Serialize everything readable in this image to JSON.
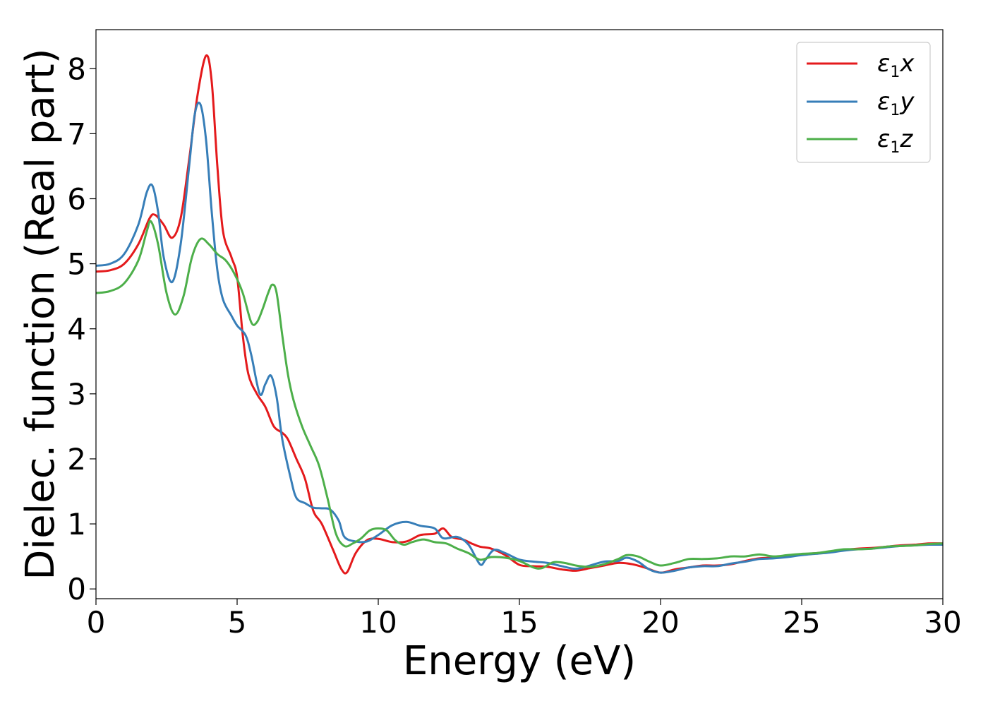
{
  "chart_data": {
    "type": "line",
    "title": "",
    "xlabel": "Energy (eV)",
    "ylabel": "Dielec. function (Real part)",
    "xlim": [
      0,
      30
    ],
    "ylim": [
      -0.15,
      8.6
    ],
    "xticks": [
      0,
      5,
      10,
      15,
      20,
      25,
      30
    ],
    "yticks": [
      0,
      1,
      2,
      3,
      4,
      5,
      6,
      7,
      8
    ],
    "grid": false,
    "legend_position": "top-right",
    "series": [
      {
        "name": "ε₁x",
        "legend_main": "ε",
        "legend_sub": "1",
        "legend_suffix": "x",
        "color": "#e41a1c",
        "points": [
          [
            0,
            4.88
          ],
          [
            0.5,
            4.9
          ],
          [
            1,
            5.0
          ],
          [
            1.5,
            5.3
          ],
          [
            1.9,
            5.7
          ],
          [
            2.1,
            5.75
          ],
          [
            2.4,
            5.6
          ],
          [
            2.7,
            5.4
          ],
          [
            3.0,
            5.7
          ],
          [
            3.3,
            6.6
          ],
          [
            3.6,
            7.6
          ],
          [
            3.9,
            8.2
          ],
          [
            4.1,
            7.8
          ],
          [
            4.3,
            6.5
          ],
          [
            4.5,
            5.5
          ],
          [
            4.8,
            5.1
          ],
          [
            5.0,
            4.8
          ],
          [
            5.2,
            3.9
          ],
          [
            5.4,
            3.3
          ],
          [
            5.7,
            3.0
          ],
          [
            6.0,
            2.8
          ],
          [
            6.3,
            2.5
          ],
          [
            6.6,
            2.4
          ],
          [
            6.8,
            2.3
          ],
          [
            7.1,
            2.0
          ],
          [
            7.4,
            1.7
          ],
          [
            7.7,
            1.2
          ],
          [
            8.0,
            1.0
          ],
          [
            8.4,
            0.6
          ],
          [
            8.7,
            0.3
          ],
          [
            8.9,
            0.26
          ],
          [
            9.2,
            0.55
          ],
          [
            9.6,
            0.75
          ],
          [
            10.0,
            0.77
          ],
          [
            10.5,
            0.72
          ],
          [
            11.0,
            0.73
          ],
          [
            11.5,
            0.83
          ],
          [
            12.0,
            0.85
          ],
          [
            12.3,
            0.93
          ],
          [
            12.6,
            0.8
          ],
          [
            13.0,
            0.76
          ],
          [
            13.3,
            0.7
          ],
          [
            13.6,
            0.65
          ],
          [
            14.0,
            0.62
          ],
          [
            14.5,
            0.52
          ],
          [
            15.0,
            0.37
          ],
          [
            15.5,
            0.35
          ],
          [
            16.0,
            0.34
          ],
          [
            16.5,
            0.3
          ],
          [
            17.0,
            0.28
          ],
          [
            17.5,
            0.32
          ],
          [
            18.0,
            0.36
          ],
          [
            18.5,
            0.4
          ],
          [
            19.0,
            0.38
          ],
          [
            19.5,
            0.32
          ],
          [
            20.0,
            0.25
          ],
          [
            20.5,
            0.3
          ],
          [
            21.0,
            0.33
          ],
          [
            21.5,
            0.36
          ],
          [
            22.0,
            0.36
          ],
          [
            22.5,
            0.38
          ],
          [
            23.0,
            0.43
          ],
          [
            23.5,
            0.47
          ],
          [
            24.0,
            0.48
          ],
          [
            24.5,
            0.5
          ],
          [
            25.0,
            0.53
          ],
          [
            25.5,
            0.55
          ],
          [
            26.0,
            0.57
          ],
          [
            26.5,
            0.6
          ],
          [
            27.0,
            0.62
          ],
          [
            27.5,
            0.63
          ],
          [
            28.0,
            0.65
          ],
          [
            28.5,
            0.67
          ],
          [
            29.0,
            0.68
          ],
          [
            29.5,
            0.7
          ],
          [
            30.0,
            0.7
          ]
        ]
      },
      {
        "name": "ε₁y",
        "legend_main": "ε",
        "legend_sub": "1",
        "legend_suffix": "y",
        "color": "#377eb8",
        "points": [
          [
            0,
            4.97
          ],
          [
            0.5,
            5.0
          ],
          [
            1,
            5.15
          ],
          [
            1.5,
            5.6
          ],
          [
            1.8,
            6.1
          ],
          [
            2.0,
            6.2
          ],
          [
            2.2,
            5.8
          ],
          [
            2.4,
            5.1
          ],
          [
            2.7,
            4.72
          ],
          [
            3.0,
            5.3
          ],
          [
            3.3,
            6.5
          ],
          [
            3.5,
            7.3
          ],
          [
            3.7,
            7.45
          ],
          [
            3.9,
            6.9
          ],
          [
            4.1,
            5.8
          ],
          [
            4.3,
            4.9
          ],
          [
            4.5,
            4.45
          ],
          [
            4.8,
            4.2
          ],
          [
            5.0,
            4.05
          ],
          [
            5.3,
            3.9
          ],
          [
            5.5,
            3.6
          ],
          [
            5.8,
            3.0
          ],
          [
            6.0,
            3.15
          ],
          [
            6.2,
            3.28
          ],
          [
            6.4,
            2.95
          ],
          [
            6.6,
            2.3
          ],
          [
            6.9,
            1.7
          ],
          [
            7.1,
            1.4
          ],
          [
            7.4,
            1.32
          ],
          [
            7.7,
            1.25
          ],
          [
            8.0,
            1.24
          ],
          [
            8.3,
            1.22
          ],
          [
            8.6,
            1.05
          ],
          [
            8.8,
            0.8
          ],
          [
            9.2,
            0.73
          ],
          [
            9.6,
            0.73
          ],
          [
            10.0,
            0.83
          ],
          [
            10.5,
            0.98
          ],
          [
            11.0,
            1.03
          ],
          [
            11.5,
            0.97
          ],
          [
            12.0,
            0.93
          ],
          [
            12.3,
            0.78
          ],
          [
            12.8,
            0.8
          ],
          [
            13.2,
            0.68
          ],
          [
            13.6,
            0.38
          ],
          [
            13.8,
            0.45
          ],
          [
            14.1,
            0.6
          ],
          [
            14.5,
            0.55
          ],
          [
            15.0,
            0.45
          ],
          [
            15.5,
            0.42
          ],
          [
            16.0,
            0.4
          ],
          [
            16.5,
            0.35
          ],
          [
            17.0,
            0.31
          ],
          [
            17.5,
            0.36
          ],
          [
            18.0,
            0.42
          ],
          [
            18.5,
            0.43
          ],
          [
            18.8,
            0.48
          ],
          [
            19.2,
            0.42
          ],
          [
            19.6,
            0.3
          ],
          [
            20.0,
            0.25
          ],
          [
            20.5,
            0.28
          ],
          [
            21.0,
            0.33
          ],
          [
            21.5,
            0.35
          ],
          [
            22.0,
            0.35
          ],
          [
            22.5,
            0.39
          ],
          [
            23.0,
            0.42
          ],
          [
            23.5,
            0.46
          ],
          [
            24.0,
            0.47
          ],
          [
            24.5,
            0.49
          ],
          [
            25.0,
            0.52
          ],
          [
            25.5,
            0.54
          ],
          [
            26.0,
            0.56
          ],
          [
            26.5,
            0.59
          ],
          [
            27.0,
            0.61
          ],
          [
            27.5,
            0.62
          ],
          [
            28.0,
            0.64
          ],
          [
            28.5,
            0.66
          ],
          [
            29.0,
            0.67
          ],
          [
            29.5,
            0.68
          ],
          [
            30.0,
            0.68
          ]
        ]
      },
      {
        "name": "ε₁z",
        "legend_main": "ε",
        "legend_sub": "1",
        "legend_suffix": "z",
        "color": "#4daf4a",
        "points": [
          [
            0,
            4.55
          ],
          [
            0.5,
            4.58
          ],
          [
            1,
            4.7
          ],
          [
            1.5,
            5.05
          ],
          [
            1.8,
            5.5
          ],
          [
            1.95,
            5.65
          ],
          [
            2.2,
            5.3
          ],
          [
            2.5,
            4.55
          ],
          [
            2.8,
            4.22
          ],
          [
            3.1,
            4.5
          ],
          [
            3.4,
            5.1
          ],
          [
            3.7,
            5.38
          ],
          [
            4.0,
            5.3
          ],
          [
            4.3,
            5.15
          ],
          [
            4.6,
            5.05
          ],
          [
            4.9,
            4.85
          ],
          [
            5.2,
            4.55
          ],
          [
            5.5,
            4.1
          ],
          [
            5.7,
            4.1
          ],
          [
            5.9,
            4.3
          ],
          [
            6.1,
            4.55
          ],
          [
            6.25,
            4.68
          ],
          [
            6.4,
            4.55
          ],
          [
            6.6,
            3.9
          ],
          [
            6.8,
            3.3
          ],
          [
            7.0,
            2.9
          ],
          [
            7.3,
            2.5
          ],
          [
            7.6,
            2.2
          ],
          [
            7.9,
            1.9
          ],
          [
            8.2,
            1.4
          ],
          [
            8.5,
            0.85
          ],
          [
            8.8,
            0.66
          ],
          [
            9.1,
            0.7
          ],
          [
            9.4,
            0.78
          ],
          [
            9.7,
            0.9
          ],
          [
            10.0,
            0.93
          ],
          [
            10.3,
            0.9
          ],
          [
            10.6,
            0.75
          ],
          [
            10.9,
            0.68
          ],
          [
            11.2,
            0.72
          ],
          [
            11.6,
            0.76
          ],
          [
            12.0,
            0.72
          ],
          [
            12.4,
            0.7
          ],
          [
            12.8,
            0.62
          ],
          [
            13.2,
            0.55
          ],
          [
            13.6,
            0.45
          ],
          [
            14.0,
            0.49
          ],
          [
            14.5,
            0.48
          ],
          [
            15.0,
            0.43
          ],
          [
            15.5,
            0.33
          ],
          [
            15.8,
            0.32
          ],
          [
            16.2,
            0.41
          ],
          [
            16.6,
            0.4
          ],
          [
            17.0,
            0.36
          ],
          [
            17.5,
            0.34
          ],
          [
            18.0,
            0.38
          ],
          [
            18.5,
            0.46
          ],
          [
            18.8,
            0.52
          ],
          [
            19.2,
            0.5
          ],
          [
            19.6,
            0.42
          ],
          [
            20.0,
            0.36
          ],
          [
            20.5,
            0.4
          ],
          [
            21.0,
            0.46
          ],
          [
            21.5,
            0.46
          ],
          [
            22.0,
            0.47
          ],
          [
            22.5,
            0.5
          ],
          [
            23.0,
            0.5
          ],
          [
            23.5,
            0.53
          ],
          [
            24.0,
            0.5
          ],
          [
            24.5,
            0.52
          ],
          [
            25.0,
            0.54
          ],
          [
            25.5,
            0.55
          ],
          [
            26.0,
            0.58
          ],
          [
            26.5,
            0.61
          ],
          [
            27.0,
            0.61
          ],
          [
            27.5,
            0.62
          ],
          [
            28.0,
            0.65
          ],
          [
            28.5,
            0.66
          ],
          [
            29.0,
            0.67
          ],
          [
            29.5,
            0.69
          ],
          [
            30.0,
            0.7
          ]
        ]
      }
    ]
  }
}
